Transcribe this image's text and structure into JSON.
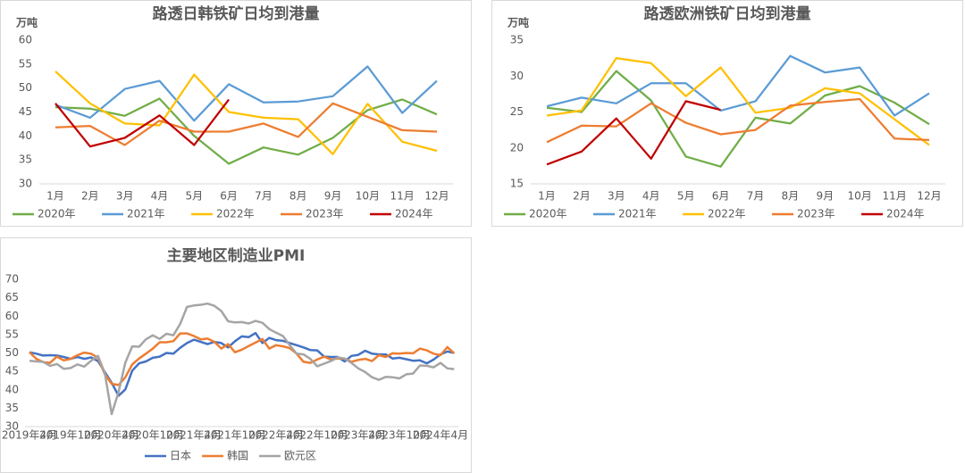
{
  "chart_data": [
    {
      "type": "line",
      "title": "路透日韩铁矿日均到港量",
      "y_label": "万吨",
      "categories": [
        "1月",
        "2月",
        "3月",
        "4月",
        "5月",
        "6月",
        "7月",
        "8月",
        "9月",
        "10月",
        "11月",
        "12月"
      ],
      "ylim": [
        30,
        60
      ],
      "yticks": [
        30,
        35,
        40,
        45,
        50,
        55,
        60
      ],
      "grid": false,
      "legend": "bottom",
      "series": [
        {
          "name": "2020年",
          "color": "#70ad47",
          "values": [
            46,
            45.7,
            44.2,
            47.8,
            40,
            34.2,
            37.6,
            36.1,
            39.6,
            45.4,
            47.6,
            44.5
          ]
        },
        {
          "name": "2021年",
          "color": "#5b9bd5",
          "values": [
            46.5,
            43.8,
            49.8,
            51.5,
            43.2,
            50.8,
            47,
            47.2,
            48.3,
            54.5,
            44.8,
            51.5
          ]
        },
        {
          "name": "2022年",
          "color": "#ffc000",
          "values": [
            53.5,
            46.8,
            42.6,
            42.2,
            52.8,
            45,
            43.8,
            43.5,
            36.2,
            46.7,
            38.8,
            36.9
          ]
        },
        {
          "name": "2023年",
          "color": "#ed7d31",
          "values": [
            41.8,
            42.1,
            38.1,
            43.2,
            40.9,
            40.9,
            42.6,
            39.8,
            46.8,
            44,
            41.2,
            40.9
          ]
        },
        {
          "name": "2024年",
          "color": "#c00000",
          "values": [
            46.8,
            37.8,
            39.6,
            44.3,
            38.1,
            47.6,
            null,
            null,
            null,
            null,
            null,
            null
          ]
        }
      ]
    },
    {
      "type": "line",
      "title": "路透欧洲铁矿日均到港量",
      "y_label": "万吨",
      "categories": [
        "1月",
        "2月",
        "3月",
        "4月",
        "5月",
        "6月",
        "7月",
        "8月",
        "9月",
        "10月",
        "11月",
        "12月"
      ],
      "ylim": [
        15,
        35
      ],
      "yticks": [
        15,
        20,
        25,
        30,
        35
      ],
      "grid": false,
      "legend": "bottom",
      "series": [
        {
          "name": "2020年",
          "color": "#70ad47",
          "values": [
            25.6,
            25,
            30.7,
            26.6,
            18.8,
            17.4,
            24.2,
            23.4,
            27.3,
            28.6,
            26.3,
            23.3
          ]
        },
        {
          "name": "2021年",
          "color": "#5b9bd5",
          "values": [
            25.8,
            27,
            26.2,
            29,
            29,
            25.2,
            26.5,
            32.8,
            30.5,
            31.2,
            24.5,
            27.6
          ]
        },
        {
          "name": "2022年",
          "color": "#ffc000",
          "values": [
            24.5,
            25.2,
            32.5,
            31.8,
            27.2,
            31.2,
            24.9,
            25.6,
            28.3,
            27.6,
            24,
            20.4
          ]
        },
        {
          "name": "2023年",
          "color": "#ed7d31",
          "values": [
            20.8,
            23.1,
            23,
            26.2,
            23.5,
            21.9,
            22.5,
            25.9,
            26.4,
            26.8,
            21.3,
            21.1
          ]
        },
        {
          "name": "2024年",
          "color": "#c00000",
          "values": [
            17.7,
            19.5,
            24.1,
            18.5,
            26.5,
            25.3,
            null,
            null,
            null,
            null,
            null,
            null
          ]
        }
      ]
    },
    {
      "type": "line",
      "title": "主要地区制造业PMI",
      "categories": [
        "2019年4月",
        null,
        null,
        null,
        null,
        null,
        "2019年10月",
        null,
        null,
        null,
        null,
        null,
        "2020年4月",
        null,
        null,
        null,
        null,
        null,
        "2020年10月",
        null,
        null,
        null,
        null,
        null,
        "2021年4月",
        null,
        null,
        null,
        null,
        null,
        "2021年10月",
        null,
        null,
        null,
        null,
        null,
        "2022年4月",
        null,
        null,
        null,
        null,
        null,
        "2022年10月",
        null,
        null,
        null,
        null,
        null,
        "2023年4月",
        null,
        null,
        null,
        null,
        null,
        "2023年10月",
        null,
        null,
        null,
        null,
        null,
        "2024年4月",
        null,
        null
      ],
      "ylim": [
        30,
        70
      ],
      "yticks": [
        30,
        35,
        40,
        45,
        50,
        55,
        60,
        65,
        70
      ],
      "grid": false,
      "legend": "bottom",
      "series": [
        {
          "name": "日本",
          "color": "#4472c4",
          "values": [
            50.2,
            49.8,
            49.3,
            49.4,
            49.3,
            48.9,
            48.4,
            48.9,
            48.4,
            48.8,
            47.8,
            44.8,
            41.9,
            38.4,
            40.1,
            45.2,
            47.2,
            47.7,
            48.7,
            49.0,
            50.0,
            49.8,
            51.4,
            52.7,
            53.6,
            53.0,
            52.4,
            53.0,
            52.7,
            51.5,
            53.2,
            54.5,
            54.3,
            55.4,
            52.7,
            54.1,
            53.5,
            53.3,
            52.7,
            52.1,
            51.5,
            50.8,
            50.7,
            49.0,
            48.9,
            48.9,
            47.7,
            49.2,
            49.5,
            50.6,
            49.8,
            49.6,
            49.6,
            48.5,
            48.7,
            48.3,
            47.9,
            48.0,
            47.2,
            48.2,
            49.6,
            50.4,
            50.0
          ]
        },
        {
          "name": "韩国",
          "color": "#ed7d31",
          "values": [
            50.2,
            48.4,
            47.5,
            47.3,
            49.0,
            48.0,
            48.4,
            49.4,
            50.1,
            49.8,
            48.7,
            44.2,
            41.6,
            41.3,
            43.4,
            46.9,
            48.5,
            49.8,
            51.2,
            52.9,
            52.9,
            53.2,
            55.3,
            55.3,
            54.6,
            53.7,
            53.9,
            53.0,
            51.2,
            52.4,
            50.2,
            50.9,
            51.9,
            52.8,
            53.8,
            51.2,
            52.1,
            51.8,
            51.3,
            49.8,
            47.6,
            47.3,
            48.2,
            49.0,
            48.2,
            48.5,
            48.5,
            47.6,
            48.1,
            48.4,
            47.8,
            49.4,
            48.9,
            49.9,
            49.8,
            50.0,
            49.9,
            51.2,
            50.7,
            49.8,
            49.4,
            51.6,
            49.9
          ]
        },
        {
          "name": "欧元区",
          "color": "#a5a5a5",
          "values": [
            47.9,
            47.7,
            47.6,
            46.5,
            47.0,
            45.7,
            45.9,
            46.9,
            46.3,
            47.9,
            49.2,
            44.5,
            33.4,
            39.4,
            47.4,
            51.8,
            51.7,
            53.7,
            54.8,
            53.8,
            55.2,
            54.8,
            57.9,
            62.5,
            62.9,
            63.1,
            63.4,
            62.8,
            61.4,
            58.6,
            58.3,
            58.4,
            58.0,
            58.7,
            58.2,
            56.5,
            55.5,
            54.6,
            52.1,
            49.8,
            49.6,
            48.4,
            46.4,
            47.1,
            47.8,
            48.8,
            48.5,
            47.3,
            45.8,
            44.8,
            43.4,
            42.7,
            43.5,
            43.4,
            43.1,
            44.2,
            44.4,
            46.6,
            46.5,
            46.1,
            47.3,
            45.8,
            45.6
          ]
        }
      ]
    }
  ]
}
